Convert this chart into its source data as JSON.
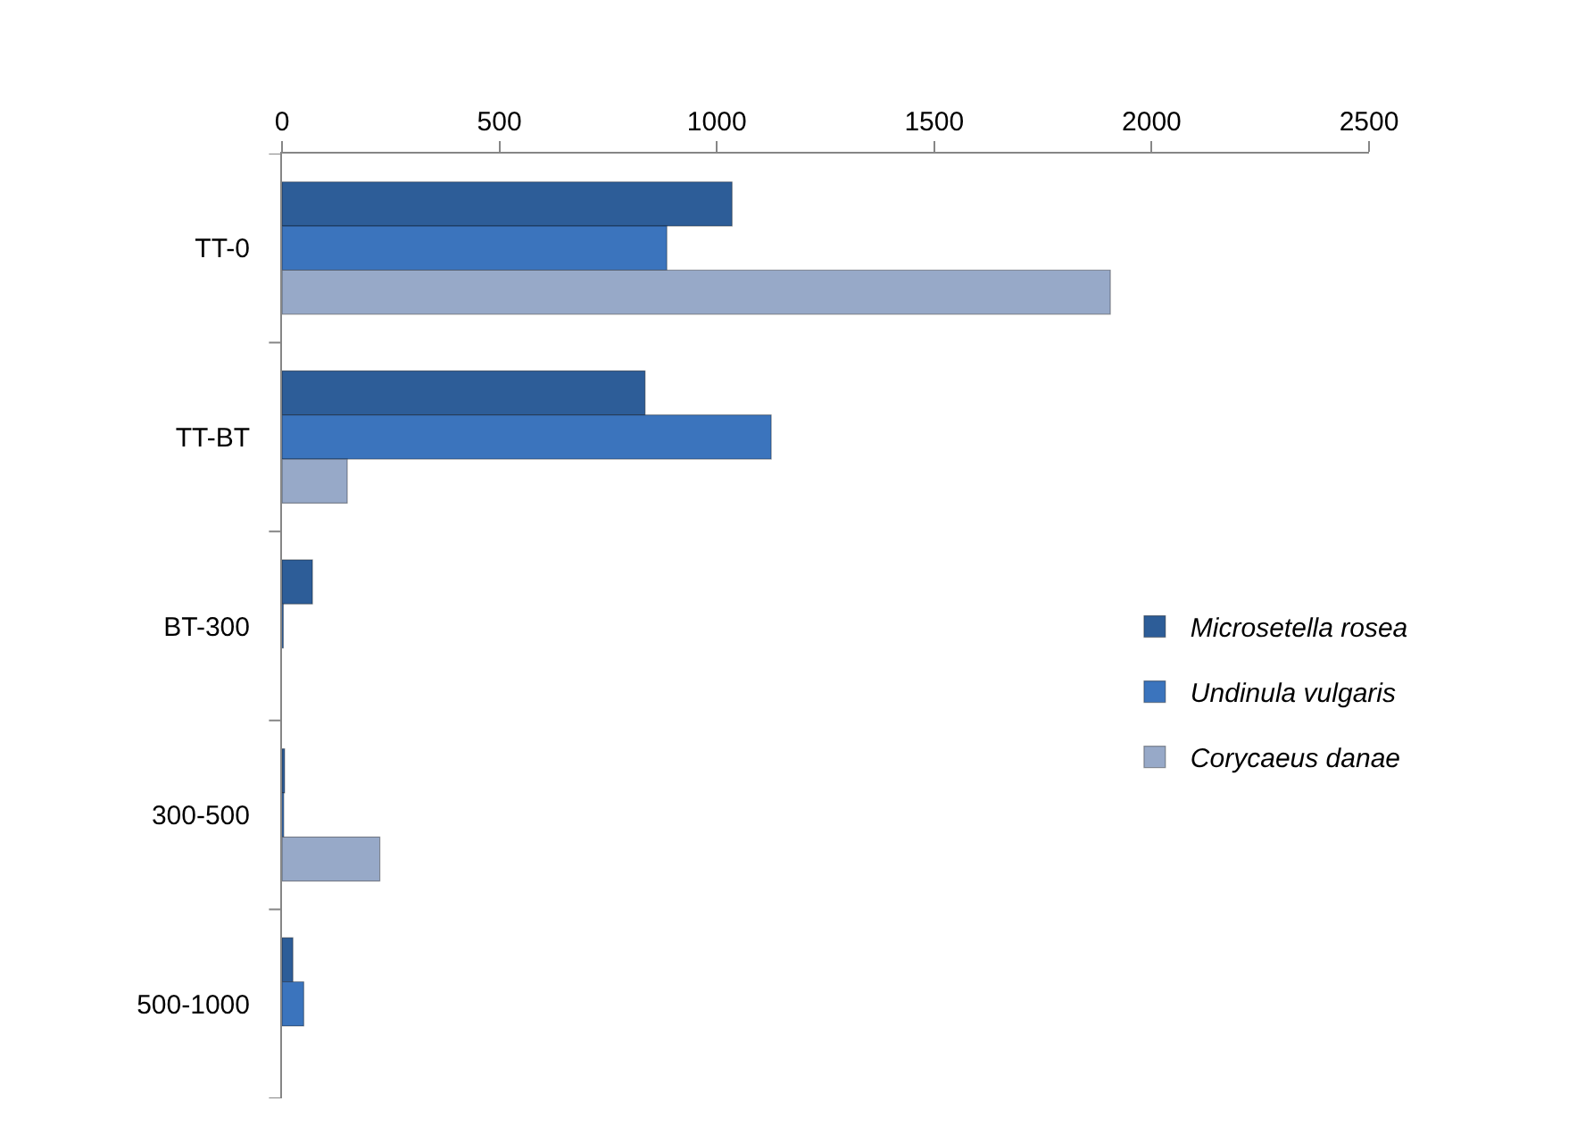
{
  "chart_data": {
    "type": "bar",
    "orientation": "horizontal",
    "categories": [
      "TT-0",
      "TT-BT",
      "BT-300",
      "300-500",
      "500-1000"
    ],
    "series": [
      {
        "name": "Microsetella rosea",
        "color": "#2d5d98",
        "values": [
          1035,
          835,
          70,
          6,
          25
        ]
      },
      {
        "name": "Undinula vulgaris",
        "color": "#3b74bd",
        "values": [
          885,
          1125,
          3,
          4,
          50
        ]
      },
      {
        "name": "Corycaeus danae",
        "color": "#97a9c8",
        "values": [
          1905,
          150,
          null,
          225,
          null
        ]
      }
    ],
    "xlim": [
      0,
      2500
    ],
    "xticks": [
      0,
      500,
      1000,
      1500,
      2000,
      2500
    ],
    "legend": "right"
  }
}
